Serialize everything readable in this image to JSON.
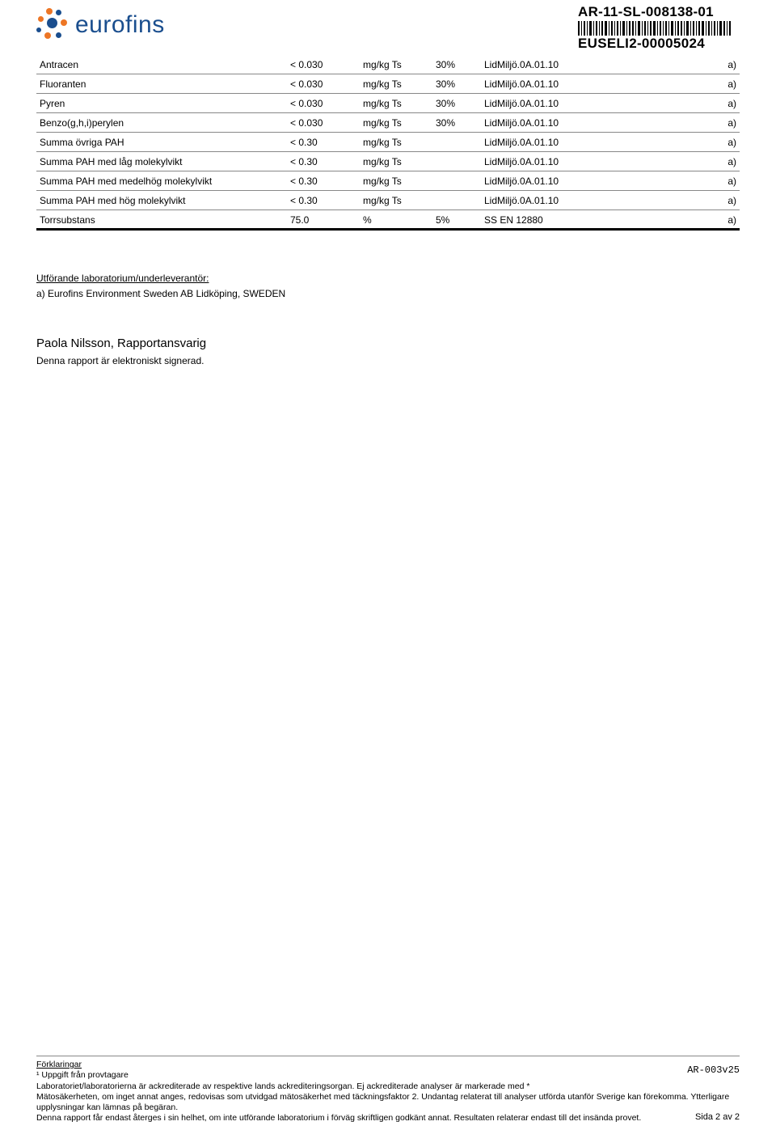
{
  "header": {
    "logo_text": "eurofins",
    "report_id": "AR-11-SL-008138-01",
    "sample_id": "EUSELI2-00005024",
    "logo_colors": {
      "orange": "#ed7625",
      "blue": "#1a4e8e"
    }
  },
  "table": {
    "rows": [
      {
        "name": "Antracen",
        "value": "< 0.030",
        "unit": "mg/kg Ts",
        "uncert": "30%",
        "method": "LidMiljö.0A.01.10",
        "acc": "a)"
      },
      {
        "name": "Fluoranten",
        "value": "< 0.030",
        "unit": "mg/kg Ts",
        "uncert": "30%",
        "method": "LidMiljö.0A.01.10",
        "acc": "a)"
      },
      {
        "name": "Pyren",
        "value": "< 0.030",
        "unit": "mg/kg Ts",
        "uncert": "30%",
        "method": "LidMiljö.0A.01.10",
        "acc": "a)"
      },
      {
        "name": "Benzo(g,h,i)perylen",
        "value": "< 0.030",
        "unit": "mg/kg Ts",
        "uncert": "30%",
        "method": "LidMiljö.0A.01.10",
        "acc": "a)"
      },
      {
        "name": "Summa övriga PAH",
        "value": "< 0.30",
        "unit": "mg/kg Ts",
        "uncert": "",
        "method": "LidMiljö.0A.01.10",
        "acc": "a)"
      },
      {
        "name": "Summa PAH med låg molekylvikt",
        "value": "< 0.30",
        "unit": "mg/kg Ts",
        "uncert": "",
        "method": "LidMiljö.0A.01.10",
        "acc": "a)"
      },
      {
        "name": "Summa PAH med medelhög molekylvikt",
        "value": "< 0.30",
        "unit": "mg/kg Ts",
        "uncert": "",
        "method": "LidMiljö.0A.01.10",
        "acc": "a)"
      },
      {
        "name": "Summa PAH med hög molekylvikt",
        "value": "< 0.30",
        "unit": "mg/kg Ts",
        "uncert": "",
        "method": "LidMiljö.0A.01.10",
        "acc": "a)"
      },
      {
        "name": "Torrsubstans",
        "value": "75.0",
        "unit": "%",
        "uncert": "5%",
        "method": "SS EN 12880",
        "acc": "a)"
      }
    ]
  },
  "lab_section": {
    "title": "Utförande laboratorium/underleverantör:",
    "line": "a)  Eurofins Environment Sweden AB Lidköping, SWEDEN"
  },
  "sign": {
    "signer": "Paola Nilsson, Rapportansvarig",
    "note": "Denna rapport är elektroniskt signerad."
  },
  "footer": {
    "title": "Förklaringar",
    "ar_code": "AR-003v25",
    "lines": [
      "¹ Uppgift från provtagare",
      "Laboratoriet/laboratorierna är ackrediterade av respektive lands ackrediteringsorgan. Ej ackrediterade analyser är markerade med *",
      "Mätosäkerheten, om inget annat anges, redovisas som utvidgad mätosäkerhet med täckningsfaktor 2. Undantag relaterat till analyser utförda utanför Sverige kan förekomma. Ytterligare upplysningar kan lämnas på begäran.",
      "Denna rapport får endast återges i sin helhet, om inte utförande laboratorium i förväg skriftligen godkänt annat. Resultaten relaterar endast till det insända provet."
    ],
    "page": "Sida 2 av 2"
  }
}
